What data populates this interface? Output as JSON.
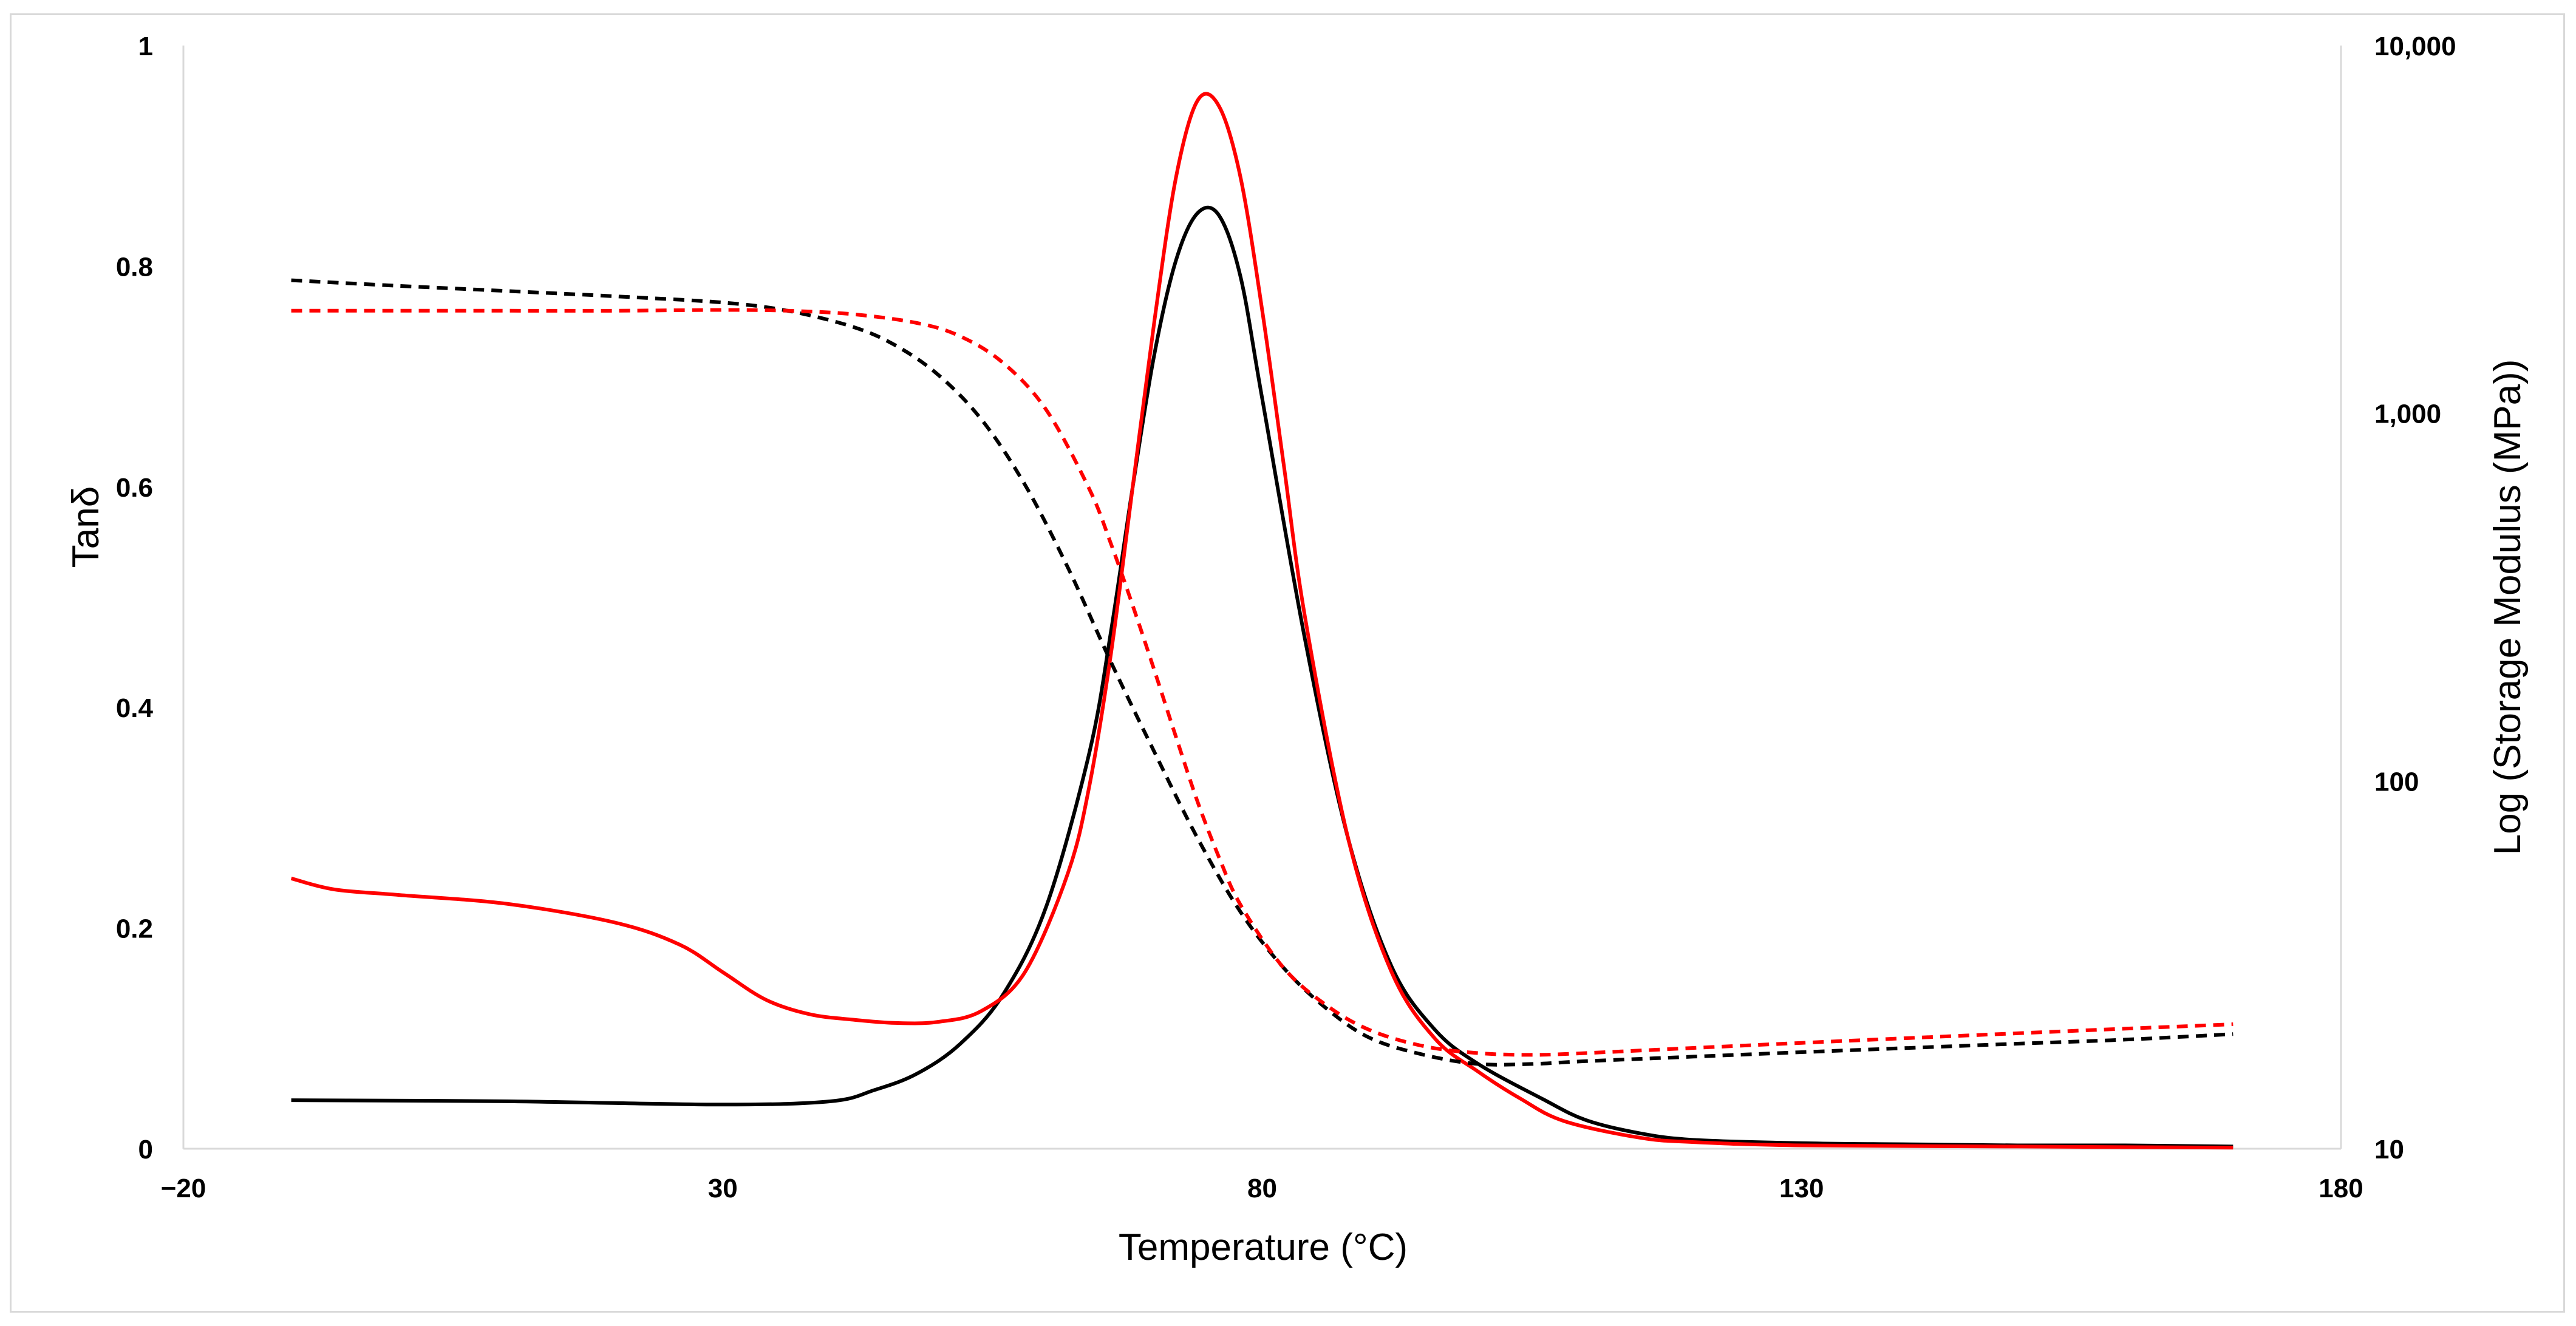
{
  "chart_data": {
    "type": "line",
    "title": "",
    "xlabel": "Temperature (°C)",
    "ylabel_left": "Tanδ",
    "ylabel_right": "Log (Storage Modulus (MPa))",
    "xlim": [
      -20,
      180
    ],
    "ylim_left": [
      0,
      1
    ],
    "ylim_right": [
      10,
      10000
    ],
    "right_axis_scale": "log",
    "grid": false,
    "legend": "none",
    "x_ticks": [
      "−20",
      "30",
      "80",
      "130",
      "180"
    ],
    "x_tick_values": [
      -20,
      30,
      80,
      130,
      180
    ],
    "y_left_ticks": [
      "0",
      "0.2",
      "0.4",
      "0.6",
      "0.8",
      "1"
    ],
    "y_left_tick_values": [
      0,
      0.2,
      0.4,
      0.6,
      0.8,
      1
    ],
    "y_right_ticks": [
      "10",
      "100",
      "1,000",
      "10,000"
    ],
    "y_right_tick_values": [
      10,
      100,
      1000,
      10000
    ],
    "series": [
      {
        "name": "Tanδ (black)",
        "axis": "left",
        "color": "#000000",
        "dash": "solid",
        "x": [
          -10,
          10,
          30,
          40,
          44,
          48,
          52,
          56,
          60,
          64,
          66,
          68,
          70,
          72,
          74,
          76,
          78,
          80,
          84,
          88,
          92,
          96,
          100,
          106,
          110,
          115,
          120,
          130,
          140,
          150,
          160,
          170
        ],
        "y": [
          0.044,
          0.043,
          0.04,
          0.043,
          0.053,
          0.068,
          0.095,
          0.14,
          0.22,
          0.36,
          0.47,
          0.6,
          0.72,
          0.805,
          0.848,
          0.846,
          0.79,
          0.68,
          0.46,
          0.28,
          0.165,
          0.108,
          0.077,
          0.045,
          0.026,
          0.014,
          0.008,
          0.005,
          0.004,
          0.003,
          0.003,
          0.002
        ]
      },
      {
        "name": "Tanδ (red)",
        "axis": "left",
        "color": "#ff0000",
        "dash": "solid",
        "x": [
          -10,
          -6,
          0,
          10,
          20,
          26,
          30,
          34,
          38,
          42,
          46,
          50,
          54,
          58,
          62,
          64,
          66,
          68,
          70,
          72,
          74,
          76,
          78,
          80,
          82,
          84,
          88,
          92,
          96,
          100,
          104,
          108,
          115,
          120,
          130,
          150,
          170
        ],
        "y": [
          0.245,
          0.235,
          0.23,
          0.222,
          0.205,
          0.185,
          0.16,
          0.135,
          0.122,
          0.117,
          0.114,
          0.115,
          0.125,
          0.16,
          0.25,
          0.33,
          0.45,
          0.6,
          0.75,
          0.88,
          0.95,
          0.945,
          0.88,
          0.76,
          0.62,
          0.48,
          0.28,
          0.16,
          0.1,
          0.07,
          0.045,
          0.025,
          0.01,
          0.006,
          0.003,
          0.002,
          0.001
        ]
      },
      {
        "name": "Storage modulus (black, dashed)",
        "axis": "right",
        "color": "#000000",
        "dash": "dashed",
        "x": [
          -10,
          0,
          10,
          20,
          30,
          36,
          42,
          46,
          50,
          54,
          58,
          62,
          66,
          70,
          74,
          78,
          82,
          86,
          90,
          95,
          100,
          105,
          110,
          120,
          130,
          140,
          150,
          160,
          170
        ],
        "y": [
          2300,
          2220,
          2150,
          2080,
          2000,
          1900,
          1720,
          1530,
          1270,
          960,
          640,
          380,
          210,
          120,
          70,
          44,
          31,
          24,
          20,
          18,
          17,
          17,
          17.3,
          17.8,
          18.3,
          18.8,
          19.3,
          19.8,
          20.5
        ]
      },
      {
        "name": "Storage modulus (red, dashed)",
        "axis": "right",
        "color": "#ff0000",
        "dash": "dashed",
        "x": [
          -10,
          0,
          10,
          20,
          30,
          36,
          42,
          48,
          52,
          56,
          60,
          64,
          66,
          68,
          70,
          72,
          74,
          76,
          78,
          82,
          86,
          90,
          95,
          100,
          105,
          110,
          120,
          130,
          140,
          150,
          160,
          170
        ],
        "y": [
          1900,
          1900,
          1900,
          1900,
          1910,
          1900,
          1860,
          1760,
          1620,
          1370,
          1020,
          620,
          440,
          300,
          200,
          132,
          88,
          62,
          46,
          31,
          24.5,
          21,
          19,
          18.2,
          18,
          18.2,
          18.8,
          19.4,
          20,
          20.6,
          21.2,
          21.8
        ]
      }
    ]
  }
}
